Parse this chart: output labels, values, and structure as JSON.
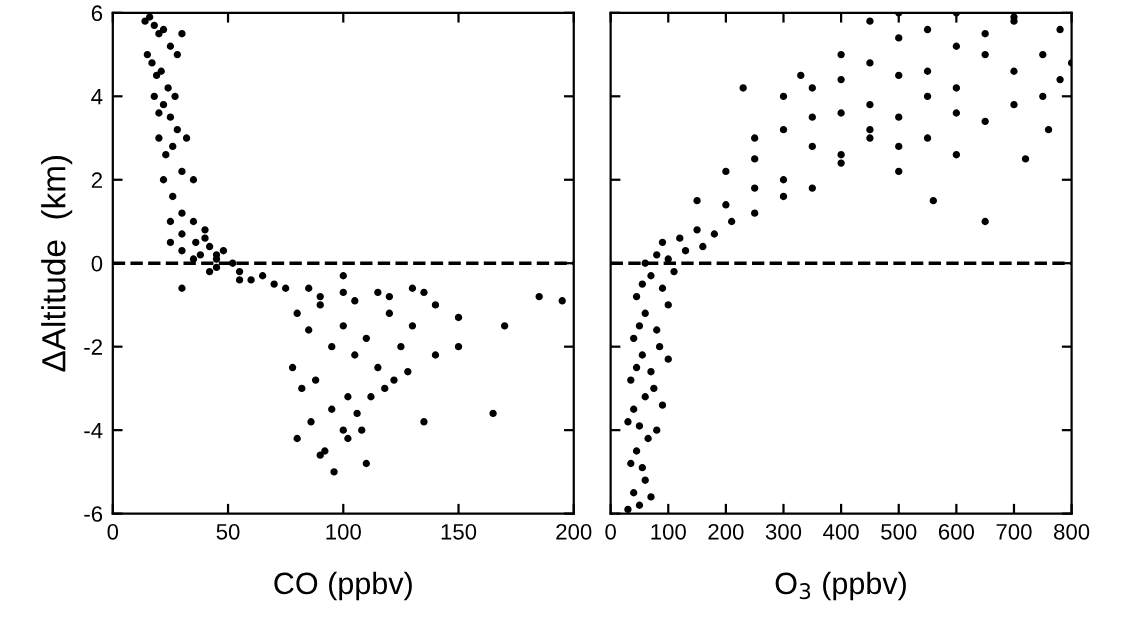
{
  "chart_data": [
    {
      "type": "scatter",
      "xlabel": "CO (ppbv)",
      "ylabel": "ΔAltitude  (km)",
      "xlim": [
        0,
        200
      ],
      "xticks": [
        0,
        50,
        100,
        150,
        200
      ],
      "ylim": [
        -6,
        6
      ],
      "yticks": [
        -6,
        -4,
        -2,
        0,
        2,
        4,
        6
      ],
      "marker": "circle",
      "grid": false,
      "ref_lines": [
        {
          "axis": "y",
          "value": 0,
          "line_style": "dashed",
          "color": "#000000"
        }
      ],
      "series": [
        {
          "color": "#000000",
          "x": [
            14,
            16,
            18,
            20,
            22,
            25,
            28,
            15,
            17,
            19,
            21,
            24,
            27,
            30,
            18,
            20,
            22,
            25,
            28,
            32,
            20,
            23,
            26,
            30,
            35,
            22,
            26,
            30,
            35,
            40,
            25,
            30,
            36,
            42,
            48,
            30,
            38,
            45,
            52,
            35,
            45,
            55,
            65,
            42,
            55,
            70,
            85,
            100,
            115,
            130,
            60,
            75,
            90,
            105,
            120,
            135,
            80,
            85,
            90,
            95,
            100,
            105,
            110,
            115,
            120,
            125,
            130,
            140,
            150,
            78,
            82,
            88,
            95,
            102,
            108,
            118,
            128,
            140,
            80,
            86,
            92,
            100,
            106,
            112,
            122,
            135,
            150,
            165,
            90,
            96,
            102,
            110,
            100,
            185,
            195,
            170,
            30,
            45,
            25,
            40
          ],
          "values": [
            5.8,
            5.9,
            5.7,
            5.5,
            5.6,
            5.2,
            5.0,
            5.0,
            4.8,
            4.5,
            4.6,
            4.2,
            4.0,
            5.5,
            4.0,
            3.6,
            3.8,
            3.5,
            3.2,
            3.0,
            3.0,
            2.6,
            2.8,
            2.2,
            2.0,
            2.0,
            1.6,
            1.2,
            1.0,
            0.8,
            1.0,
            0.7,
            0.5,
            0.4,
            0.3,
            0.3,
            0.2,
            0.1,
            0.0,
            0.1,
            -0.1,
            -0.2,
            -0.3,
            -0.2,
            -0.4,
            -0.5,
            -0.6,
            -0.7,
            -0.7,
            -0.6,
            -0.4,
            -0.6,
            -0.8,
            -0.9,
            -0.8,
            -0.7,
            -1.2,
            -1.6,
            -1.0,
            -2.0,
            -1.5,
            -2.2,
            -1.8,
            -2.5,
            -1.2,
            -2.0,
            -1.5,
            -1.0,
            -1.3,
            -2.5,
            -3.0,
            -2.8,
            -3.5,
            -3.2,
            -4.0,
            -3.0,
            -2.6,
            -2.2,
            -4.2,
            -3.8,
            -4.5,
            -4.0,
            -3.6,
            -3.2,
            -2.8,
            -3.8,
            -2.0,
            -3.6,
            -4.6,
            -5.0,
            -4.2,
            -4.8,
            -0.3,
            -0.8,
            -0.9,
            -1.5,
            -0.6,
            0.2,
            0.5,
            0.6
          ]
        }
      ]
    },
    {
      "type": "scatter",
      "xlabel": "O$_{3}$ (ppbv)",
      "xlim": [
        0,
        800
      ],
      "xticks": [
        0,
        100,
        200,
        300,
        400,
        500,
        600,
        700,
        800
      ],
      "ylim": [
        -6,
        6
      ],
      "yticks": [
        -6,
        -4,
        -2,
        0,
        2,
        4,
        6
      ],
      "tick_labels": "x",
      "marker": "circle",
      "grid": false,
      "ref_lines": [
        {
          "axis": "y",
          "value": 0,
          "line_style": "dashed",
          "color": "#000000"
        }
      ],
      "series": [
        {
          "color": "#000000",
          "x": [
            30,
            40,
            50,
            60,
            70,
            35,
            45,
            55,
            65,
            80,
            30,
            40,
            50,
            60,
            75,
            90,
            35,
            45,
            55,
            70,
            85,
            100,
            40,
            50,
            60,
            80,
            100,
            45,
            55,
            70,
            90,
            110,
            60,
            80,
            100,
            130,
            160,
            90,
            120,
            150,
            180,
            210,
            250,
            150,
            200,
            250,
            300,
            200,
            250,
            300,
            350,
            400,
            250,
            300,
            350,
            400,
            450,
            500,
            300,
            350,
            400,
            450,
            500,
            550,
            600,
            350,
            400,
            450,
            500,
            550,
            600,
            650,
            700,
            400,
            450,
            500,
            550,
            600,
            650,
            700,
            750,
            780,
            450,
            500,
            550,
            600,
            650,
            700,
            750,
            800,
            500,
            600,
            700,
            780,
            560,
            650,
            720,
            760,
            230,
            330
          ],
          "values": [
            -5.9,
            -5.5,
            -5.8,
            -5.2,
            -5.6,
            -4.8,
            -4.5,
            -4.9,
            -4.2,
            -4.0,
            -3.8,
            -3.5,
            -3.9,
            -3.2,
            -3.0,
            -3.4,
            -2.8,
            -2.5,
            -2.2,
            -2.6,
            -2.0,
            -2.3,
            -1.8,
            -1.5,
            -1.2,
            -1.6,
            -1.0,
            -0.8,
            -0.5,
            -0.3,
            -0.6,
            -0.2,
            0.0,
            0.2,
            0.1,
            0.3,
            0.4,
            0.5,
            0.6,
            0.8,
            0.7,
            1.0,
            1.2,
            1.5,
            1.4,
            1.8,
            1.6,
            2.2,
            2.5,
            2.0,
            1.8,
            2.4,
            3.0,
            3.2,
            2.8,
            2.6,
            3.0,
            2.2,
            4.0,
            3.5,
            3.6,
            3.2,
            2.8,
            3.0,
            2.6,
            4.2,
            4.4,
            3.8,
            3.5,
            4.0,
            3.6,
            3.4,
            3.8,
            5.0,
            4.8,
            4.5,
            4.6,
            4.2,
            5.0,
            4.6,
            4.0,
            4.4,
            5.8,
            5.4,
            5.6,
            5.2,
            5.5,
            5.9,
            5.0,
            4.8,
            6.0,
            6.0,
            5.8,
            5.6,
            1.5,
            1.0,
            2.5,
            3.2,
            4.2,
            4.5
          ]
        }
      ]
    }
  ]
}
